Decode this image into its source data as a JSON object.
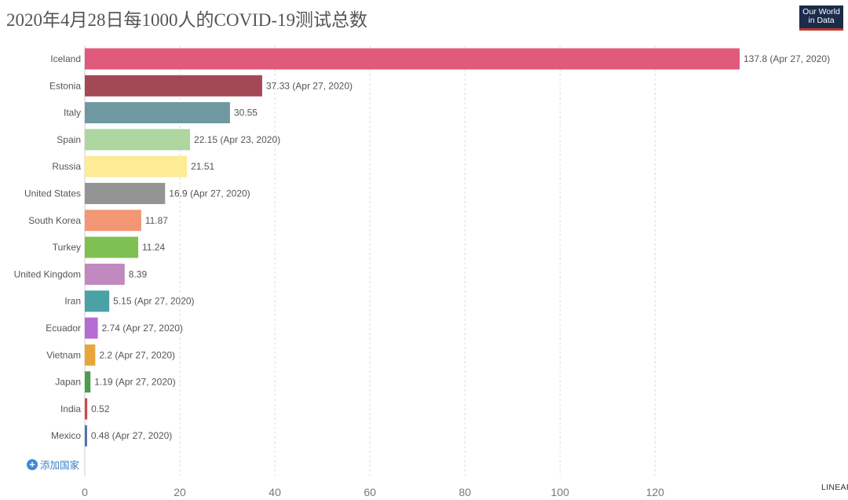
{
  "header": {
    "title": "2020年4月28日每1000人的COVID-19测试总数",
    "logo_line1": "Our World",
    "logo_line2": "in Data"
  },
  "controls": {
    "add_country_label": "添加国家",
    "scale_toggle_label": "LINEAR"
  },
  "chart_data": {
    "type": "bar",
    "orientation": "horizontal",
    "title": "2020年4月28日每1000人的COVID-19测试总数",
    "xlim": [
      0,
      137.8
    ],
    "x_ticks": [
      0,
      20,
      40,
      60,
      80,
      100,
      120
    ],
    "grid": true,
    "bars": [
      {
        "category": "Iceland",
        "value": 137.8,
        "label": "137.8 (Apr 27, 2020)",
        "color": "#e05a7b"
      },
      {
        "category": "Estonia",
        "value": 37.33,
        "label": "37.33 (Apr 27, 2020)",
        "color": "#a34955"
      },
      {
        "category": "Italy",
        "value": 30.55,
        "label": "30.55",
        "color": "#6f98a0"
      },
      {
        "category": "Spain",
        "value": 22.15,
        "label": "22.15 (Apr 23, 2020)",
        "color": "#aed6a0"
      },
      {
        "category": "Russia",
        "value": 21.51,
        "label": "21.51",
        "color": "#fdeb95"
      },
      {
        "category": "United States",
        "value": 16.9,
        "label": "16.9 (Apr 27, 2020)",
        "color": "#949494"
      },
      {
        "category": "South Korea",
        "value": 11.87,
        "label": "11.87",
        "color": "#f39673"
      },
      {
        "category": "Turkey",
        "value": 11.24,
        "label": "11.24",
        "color": "#7ec052"
      },
      {
        "category": "United Kingdom",
        "value": 8.39,
        "label": "8.39",
        "color": "#c089bf"
      },
      {
        "category": "Iran",
        "value": 5.15,
        "label": "5.15 (Apr 27, 2020)",
        "color": "#4aa1a6"
      },
      {
        "category": "Ecuador",
        "value": 2.74,
        "label": "2.74 (Apr 27, 2020)",
        "color": "#b56cd2"
      },
      {
        "category": "Vietnam",
        "value": 2.2,
        "label": "2.2 (Apr 27, 2020)",
        "color": "#e8a53a"
      },
      {
        "category": "Japan",
        "value": 1.19,
        "label": "1.19 (Apr 27, 2020)",
        "color": "#4e9c4e"
      },
      {
        "category": "India",
        "value": 0.52,
        "label": "0.52",
        "color": "#cc4b4b"
      },
      {
        "category": "Mexico",
        "value": 0.48,
        "label": "0.48 (Apr 27, 2020)",
        "color": "#4f6fa8"
      }
    ]
  }
}
